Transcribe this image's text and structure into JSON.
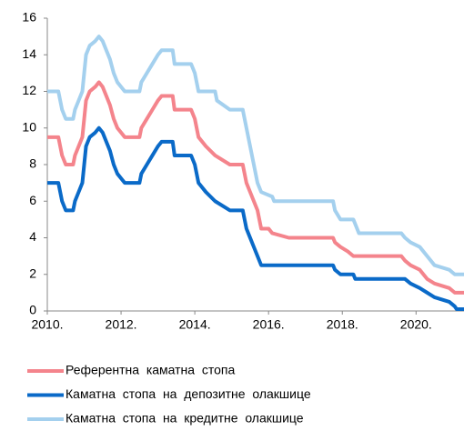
{
  "chart_data": {
    "type": "line",
    "xlim": [
      2010,
      2021.3
    ],
    "xticks": [
      {
        "value": 2010,
        "label": "2010."
      },
      {
        "value": 2012,
        "label": "2012."
      },
      {
        "value": 2014,
        "label": "2014."
      },
      {
        "value": 2016,
        "label": "2016."
      },
      {
        "value": 2018,
        "label": "2018."
      },
      {
        "value": 2020,
        "label": "2020."
      }
    ],
    "ylim": [
      0,
      16
    ],
    "yticks": [
      0,
      2,
      4,
      6,
      8,
      10,
      12,
      14,
      16
    ],
    "grid": false,
    "legend": "bottom",
    "series": [
      {
        "name": "Референтна  каматна  стопа",
        "color": "#f4848c",
        "x": [
          2010.0,
          2010.3,
          2010.35,
          2010.4,
          2010.5,
          2010.7,
          2010.75,
          2010.85,
          2010.95,
          2011.0,
          2011.05,
          2011.15,
          2011.3,
          2011.4,
          2011.5,
          2011.6,
          2011.7,
          2011.8,
          2011.9,
          2012.0,
          2012.1,
          2012.5,
          2012.55,
          2012.7,
          2012.85,
          2013.0,
          2013.1,
          2013.4,
          2013.45,
          2013.9,
          2014.0,
          2014.1,
          2014.3,
          2014.55,
          2014.95,
          2015.3,
          2015.35,
          2015.4,
          2015.5,
          2015.6,
          2015.7,
          2015.8,
          2016.0,
          2016.1,
          2016.55,
          2017.75,
          2017.8,
          2017.95,
          2018.15,
          2018.3,
          2019.6,
          2019.7,
          2019.85,
          2020.1,
          2020.3,
          2020.5,
          2020.9,
          2021.05,
          2021.3
        ],
        "values": [
          9.5,
          9.5,
          9.0,
          8.5,
          8.0,
          8.0,
          8.5,
          9.0,
          9.5,
          10.5,
          11.5,
          12.0,
          12.25,
          12.5,
          12.25,
          11.75,
          11.25,
          10.5,
          10.0,
          9.75,
          9.5,
          9.5,
          10.0,
          10.5,
          11.0,
          11.5,
          11.75,
          11.75,
          11.0,
          11.0,
          10.5,
          9.5,
          9.0,
          8.5,
          8.0,
          8.0,
          7.5,
          7.0,
          6.5,
          6.0,
          5.5,
          4.5,
          4.5,
          4.25,
          4.0,
          4.0,
          3.75,
          3.5,
          3.25,
          3.0,
          3.0,
          2.75,
          2.5,
          2.25,
          1.75,
          1.5,
          1.25,
          1.0,
          1.0
        ]
      },
      {
        "name": "Каматна  стопа  на  депозитне  олакшице",
        "color": "#0a6ac8",
        "x": [
          2010.0,
          2010.3,
          2010.35,
          2010.4,
          2010.5,
          2010.7,
          2010.75,
          2010.85,
          2010.95,
          2011.0,
          2011.05,
          2011.15,
          2011.3,
          2011.4,
          2011.5,
          2011.6,
          2011.7,
          2011.8,
          2011.9,
          2012.0,
          2012.1,
          2012.5,
          2012.55,
          2012.7,
          2012.85,
          2013.0,
          2013.1,
          2013.4,
          2013.45,
          2013.9,
          2014.0,
          2014.1,
          2014.3,
          2014.55,
          2014.95,
          2015.3,
          2015.35,
          2015.4,
          2015.5,
          2015.6,
          2015.7,
          2015.8,
          2017.75,
          2017.8,
          2017.95,
          2018.3,
          2018.35,
          2019.7,
          2019.85,
          2020.1,
          2020.3,
          2020.5,
          2020.9,
          2021.05,
          2021.1,
          2021.3
        ],
        "values": [
          7.0,
          7.0,
          6.5,
          6.0,
          5.5,
          5.5,
          6.0,
          6.5,
          7.0,
          8.0,
          9.0,
          9.5,
          9.75,
          10.0,
          9.75,
          9.25,
          8.75,
          8.0,
          7.5,
          7.25,
          7.0,
          7.0,
          7.5,
          8.0,
          8.5,
          9.0,
          9.25,
          9.25,
          8.5,
          8.5,
          8.0,
          7.0,
          6.5,
          6.0,
          5.5,
          5.5,
          5.0,
          4.5,
          4.0,
          3.5,
          3.0,
          2.5,
          2.5,
          2.25,
          2.0,
          2.0,
          1.75,
          1.75,
          1.5,
          1.25,
          1.0,
          0.75,
          0.5,
          0.25,
          0.1,
          0.1
        ]
      },
      {
        "name": "Каматна  стопа  на  кредитне  олакшице",
        "color": "#a4d0ee",
        "x": [
          2010.0,
          2010.3,
          2010.35,
          2010.4,
          2010.5,
          2010.7,
          2010.75,
          2010.85,
          2010.95,
          2011.0,
          2011.05,
          2011.15,
          2011.3,
          2011.4,
          2011.5,
          2011.6,
          2011.7,
          2011.8,
          2011.9,
          2012.0,
          2012.1,
          2012.5,
          2012.55,
          2012.7,
          2012.85,
          2013.0,
          2013.1,
          2013.4,
          2013.45,
          2013.9,
          2014.0,
          2014.1,
          2014.55,
          2014.6,
          2014.95,
          2015.3,
          2015.35,
          2015.4,
          2015.5,
          2015.6,
          2015.7,
          2015.8,
          2016.1,
          2016.15,
          2017.75,
          2017.8,
          2017.95,
          2018.3,
          2018.35,
          2018.45,
          2019.6,
          2019.7,
          2019.85,
          2020.1,
          2020.3,
          2020.5,
          2020.9,
          2021.05,
          2021.3
        ],
        "values": [
          12,
          12,
          11.5,
          11.0,
          10.5,
          10.5,
          11,
          11.5,
          12,
          13,
          14,
          14.5,
          14.75,
          15,
          14.75,
          14.25,
          13.75,
          13,
          12.5,
          12.25,
          12,
          12,
          12.5,
          13,
          13.5,
          14,
          14.25,
          14.25,
          13.5,
          13.5,
          13,
          12,
          12,
          11.5,
          11,
          11,
          10.5,
          10,
          9,
          8,
          7,
          6.5,
          6.25,
          6,
          6,
          5.5,
          5,
          5,
          4.75,
          4.25,
          4.25,
          4,
          3.75,
          3.5,
          3,
          2.5,
          2.25,
          2,
          2
        ]
      }
    ]
  }
}
